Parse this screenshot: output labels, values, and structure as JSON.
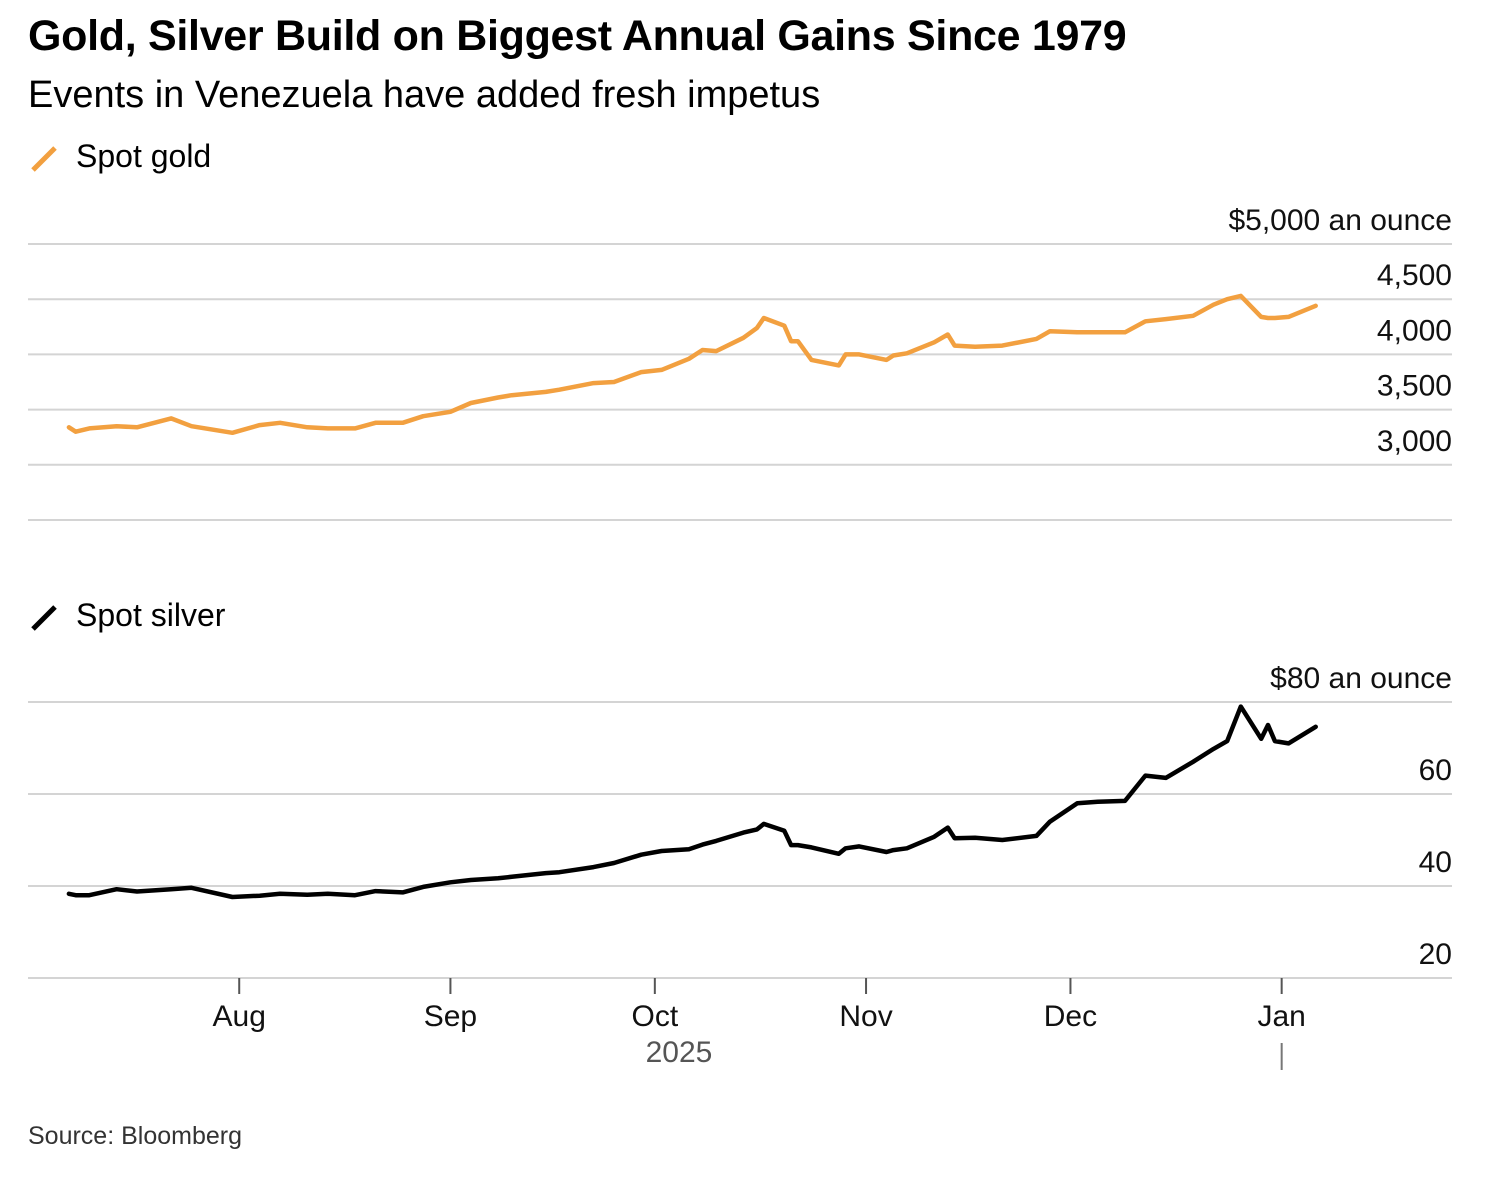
{
  "title": "Gold, Silver Build on Biggest Annual Gains Since 1979",
  "subtitle": "Events in Venezuela have added fresh impetus",
  "source": "Source: Bloomberg",
  "colors": {
    "gold": "#f2a040",
    "silver": "#000000",
    "grid": "#d4d4d4",
    "axis": "#aaaaaa"
  },
  "legend": {
    "gold": {
      "label": "Spot gold",
      "icon": "diagonal-line-icon"
    },
    "silver": {
      "label": "Spot silver",
      "icon": "diagonal-line-icon"
    }
  },
  "x_axis": {
    "months": [
      "Aug",
      "Sep",
      "Oct",
      "Nov",
      "Dec",
      "Jan"
    ],
    "year": "2025",
    "start_date": "2025-07-07",
    "end_date": "2026-01-06"
  },
  "chart_data": [
    {
      "type": "line",
      "name": "Spot gold",
      "unit_label": "$5,000 an ounce",
      "ylim": [
        2500,
        5000
      ],
      "yticks": [
        5000,
        4500,
        4000,
        3500,
        3000
      ],
      "ytick_labels": [
        "$5,000 an ounce",
        "4,500",
        "4,000",
        "3,500",
        "3,000"
      ],
      "grid": true,
      "x": [
        "2025-07-07",
        "2025-07-08",
        "2025-07-10",
        "2025-07-14",
        "2025-07-17",
        "2025-07-22",
        "2025-07-25",
        "2025-07-31",
        "2025-08-04",
        "2025-08-07",
        "2025-08-11",
        "2025-08-14",
        "2025-08-18",
        "2025-08-21",
        "2025-08-25",
        "2025-08-28",
        "2025-09-01",
        "2025-09-04",
        "2025-09-08",
        "2025-09-10",
        "2025-09-15",
        "2025-09-17",
        "2025-09-22",
        "2025-09-25",
        "2025-09-29",
        "2025-10-02",
        "2025-10-06",
        "2025-10-08",
        "2025-10-10",
        "2025-10-14",
        "2025-10-16",
        "2025-10-17",
        "2025-10-20",
        "2025-10-21",
        "2025-10-22",
        "2025-10-24",
        "2025-10-28",
        "2025-10-29",
        "2025-10-31",
        "2025-11-04",
        "2025-11-05",
        "2025-11-07",
        "2025-11-11",
        "2025-11-13",
        "2025-11-14",
        "2025-11-17",
        "2025-11-21",
        "2025-11-26",
        "2025-11-28",
        "2025-12-02",
        "2025-12-05",
        "2025-12-09",
        "2025-12-12",
        "2025-12-15",
        "2025-12-19",
        "2025-12-22",
        "2025-12-24",
        "2025-12-26",
        "2025-12-29",
        "2025-12-30",
        "2025-12-31",
        "2026-01-02",
        "2026-01-06"
      ],
      "values": [
        3340,
        3300,
        3330,
        3350,
        3340,
        3420,
        3350,
        3290,
        3360,
        3380,
        3340,
        3330,
        3330,
        3380,
        3380,
        3440,
        3480,
        3560,
        3610,
        3630,
        3660,
        3680,
        3740,
        3750,
        3840,
        3860,
        3960,
        4040,
        4030,
        4150,
        4240,
        4330,
        4260,
        4120,
        4120,
        3950,
        3900,
        4000,
        4000,
        3950,
        3990,
        4010,
        4110,
        4180,
        4080,
        4070,
        4080,
        4140,
        4210,
        4200,
        4200,
        4200,
        4300,
        4320,
        4350,
        4450,
        4500,
        4530,
        4340,
        4330,
        4330,
        4340,
        4440
      ]
    },
    {
      "type": "line",
      "name": "Spot silver",
      "unit_label": "$80 an ounce",
      "ylim": [
        20,
        80
      ],
      "yticks": [
        80,
        60,
        40,
        20
      ],
      "ytick_labels": [
        "$80 an ounce",
        "60",
        "40",
        "20"
      ],
      "grid": true,
      "x": [
        "2025-07-07",
        "2025-07-08",
        "2025-07-10",
        "2025-07-14",
        "2025-07-17",
        "2025-07-22",
        "2025-07-25",
        "2025-07-31",
        "2025-08-04",
        "2025-08-07",
        "2025-08-11",
        "2025-08-14",
        "2025-08-18",
        "2025-08-21",
        "2025-08-25",
        "2025-08-28",
        "2025-09-01",
        "2025-09-04",
        "2025-09-08",
        "2025-09-10",
        "2025-09-15",
        "2025-09-17",
        "2025-09-22",
        "2025-09-25",
        "2025-09-29",
        "2025-10-02",
        "2025-10-06",
        "2025-10-08",
        "2025-10-10",
        "2025-10-14",
        "2025-10-16",
        "2025-10-17",
        "2025-10-20",
        "2025-10-21",
        "2025-10-22",
        "2025-10-24",
        "2025-10-28",
        "2025-10-29",
        "2025-10-31",
        "2025-11-04",
        "2025-11-05",
        "2025-11-07",
        "2025-11-11",
        "2025-11-13",
        "2025-11-14",
        "2025-11-17",
        "2025-11-21",
        "2025-11-26",
        "2025-11-28",
        "2025-12-02",
        "2025-12-05",
        "2025-12-09",
        "2025-12-12",
        "2025-12-15",
        "2025-12-19",
        "2025-12-22",
        "2025-12-24",
        "2025-12-26",
        "2025-12-29",
        "2025-12-30",
        "2025-12-31",
        "2026-01-02",
        "2026-01-06"
      ],
      "values": [
        38.3,
        38.0,
        38.0,
        39.3,
        38.8,
        39.3,
        39.6,
        37.6,
        37.9,
        38.3,
        38.1,
        38.3,
        38.0,
        38.9,
        38.6,
        39.8,
        40.8,
        41.3,
        41.7,
        42.0,
        42.8,
        43.0,
        44.1,
        45.0,
        46.8,
        47.6,
        48.0,
        49.0,
        49.8,
        51.6,
        52.3,
        53.5,
        52.0,
        48.9,
        48.9,
        48.4,
        47.0,
        48.2,
        48.6,
        47.4,
        47.8,
        48.2,
        50.7,
        52.7,
        50.4,
        50.5,
        50.0,
        50.9,
        54.0,
        58.0,
        58.3,
        58.5,
        64.0,
        63.5,
        67.0,
        69.8,
        71.5,
        79.0,
        72.0,
        75.0,
        71.5,
        71.0,
        74.6
      ]
    }
  ]
}
